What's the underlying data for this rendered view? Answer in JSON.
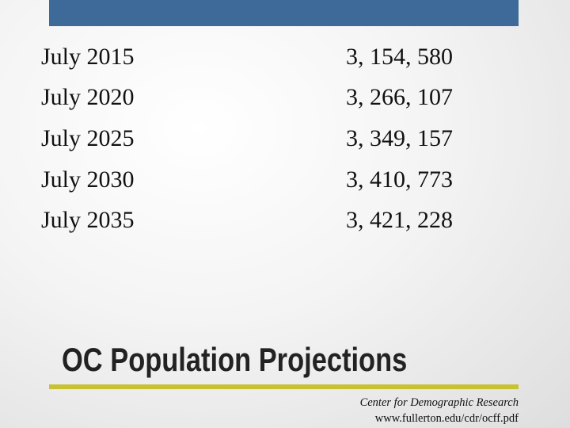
{
  "table": {
    "rows": [
      [
        "July 2015",
        "3, 154, 580"
      ],
      [
        "July 2020",
        "3, 266, 107"
      ],
      [
        "July 2025",
        "3, 349, 157"
      ],
      [
        "July 2030",
        "3, 410, 773"
      ],
      [
        "July 2035",
        "3, 421, 228"
      ]
    ]
  },
  "title": "OC Population Projections",
  "source": {
    "line1": "Center for Demographic Research",
    "line2": "www.fullerton.edu/cdr/ocff.pdf"
  }
}
